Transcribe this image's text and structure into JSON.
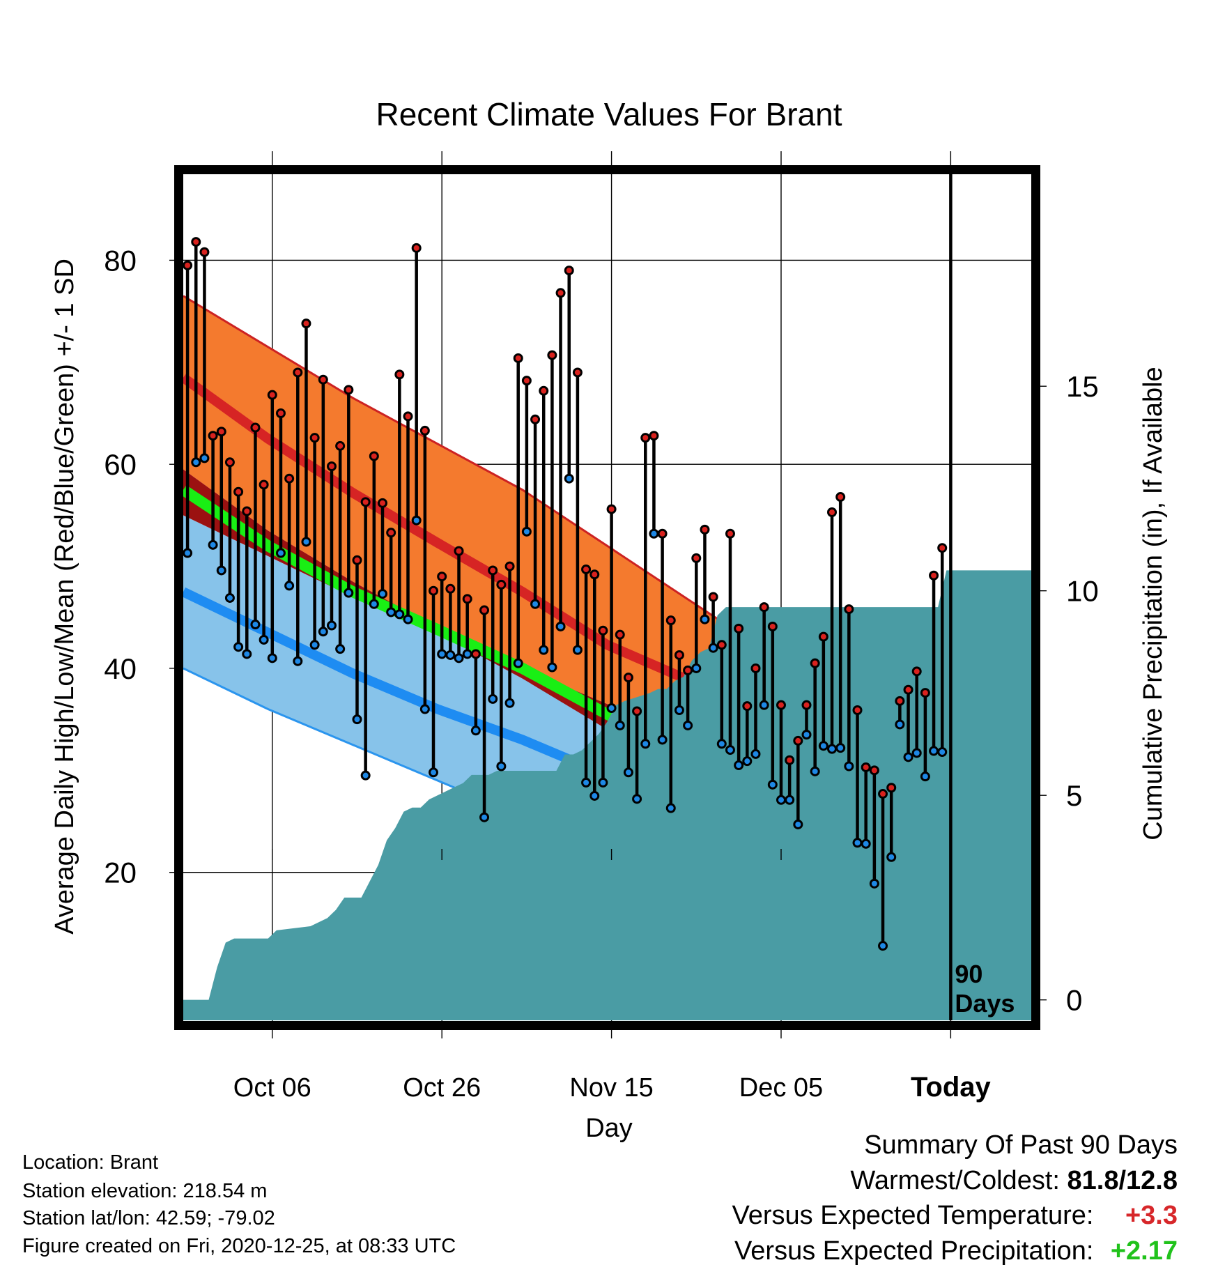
{
  "chart_data": {
    "type": "line",
    "title": "Recent Climate Values For Brant",
    "xlabel": "Day",
    "ylabel": "Average Daily High/Low/Mean (Red/Blue/Green) +/- 1 SD",
    "y2label": "Cumulative Precipitation (in), If Available",
    "xlim_days": [
      0,
      100
    ],
    "ylim": [
      5.5,
      88.5
    ],
    "y2lim": [
      -0.5,
      20.2
    ],
    "x_ticks": [
      {
        "day": 10.5,
        "label": "Oct 06"
      },
      {
        "day": 30.5,
        "label": "Oct 26"
      },
      {
        "day": 50.5,
        "label": "Nov 15"
      },
      {
        "day": 70.5,
        "label": "Dec 05"
      },
      {
        "day": 90.5,
        "label": "Today"
      }
    ],
    "y_ticks": [
      20,
      40,
      60,
      80
    ],
    "y_minor_ticks": [
      10,
      30,
      50,
      70
    ],
    "y2_ticks": [
      0,
      5,
      10,
      15
    ],
    "today_marker": {
      "day": 90.5,
      "label_line1": "90",
      "label_line2": "Days"
    },
    "normals": {
      "days": [
        0,
        10,
        20,
        30,
        40,
        50,
        60,
        70,
        80,
        90,
        100
      ],
      "high_mean": [
        68.5,
        62.5,
        57.2,
        52.3,
        47.5,
        42.3,
        38.7,
        35.5,
        32.6,
        30.5,
        28.3
      ],
      "high_upper": [
        76.5,
        71.5,
        66.5,
        62.0,
        57.5,
        52.0,
        46.5,
        41.0,
        38.0,
        36.0,
        35.0
      ],
      "high_lower": [
        59.5,
        53.5,
        48.5,
        44.0,
        39.0,
        34.0,
        30.0,
        27.0,
        24.5,
        22.0,
        20.5
      ],
      "mean_mean": [
        57.5,
        52.0,
        47.5,
        43.8,
        40.0,
        35.5,
        31.5,
        28.0,
        24.8,
        22.0,
        19.8
      ],
      "low_mean": [
        47.5,
        43.5,
        39.5,
        36.0,
        33.0,
        29.5,
        25.5,
        22.0,
        18.0,
        15.5,
        13.5
      ],
      "low_upper": [
        55.0,
        51.0,
        47.0,
        43.5,
        40.0,
        36.5,
        33.5,
        31.0,
        28.5,
        26.0,
        24.5
      ],
      "low_lower": [
        40.0,
        36.0,
        32.5,
        29.0,
        25.5,
        22.0,
        17.0,
        12.5,
        8.5,
        6.0,
        5.0
      ]
    },
    "series": [
      {
        "name": "High",
        "x": [
          0,
          1,
          2,
          3,
          4,
          5,
          6,
          7,
          8,
          9,
          10,
          11,
          12,
          13,
          14,
          15,
          16,
          17,
          18,
          19,
          20,
          21,
          22,
          23,
          24,
          25,
          26,
          27,
          28,
          29,
          30,
          31,
          32,
          33,
          34,
          35,
          36,
          37,
          38,
          39,
          40,
          41,
          42,
          43,
          44,
          45,
          46,
          47,
          48,
          49,
          50,
          51,
          52,
          53,
          54,
          55,
          56,
          57,
          58,
          59,
          60,
          61,
          62,
          63,
          64,
          65,
          66,
          67,
          68,
          69,
          70,
          71,
          72,
          73,
          74,
          75,
          76,
          77,
          78,
          79,
          80,
          81,
          82,
          83,
          84,
          85,
          86,
          87,
          88,
          89
        ],
        "values": [
          79.5,
          81.8,
          80.8,
          62.8,
          63.2,
          60.2,
          57.3,
          55.4,
          63.6,
          58.0,
          66.8,
          65.0,
          58.6,
          69.0,
          73.8,
          62.6,
          68.3,
          59.8,
          61.8,
          67.3,
          50.6,
          56.3,
          60.8,
          56.2,
          53.3,
          68.8,
          64.7,
          81.2,
          63.3,
          47.6,
          49.0,
          47.8,
          51.5,
          46.8,
          41.4,
          45.7,
          49.6,
          48.2,
          50.0,
          70.4,
          68.2,
          64.4,
          67.2,
          70.7,
          76.8,
          79.0,
          69.0,
          49.7,
          49.2,
          43.7,
          55.6,
          43.3,
          39.1,
          35.8,
          62.6,
          62.8,
          53.2,
          44.7,
          41.3,
          39.8,
          50.8,
          53.6,
          47.0,
          42.3,
          53.2,
          43.9,
          36.3,
          40.0,
          46.0,
          44.1,
          36.4,
          31.0,
          32.9,
          36.4,
          40.5,
          43.1,
          55.3,
          56.8,
          45.8,
          35.9,
          30.3,
          30.0,
          27.7,
          28.3,
          36.8,
          37.9,
          39.7,
          37.6,
          49.1,
          51.8
        ]
      },
      {
        "name": "Low",
        "x": [
          0,
          1,
          2,
          3,
          4,
          5,
          6,
          7,
          8,
          9,
          10,
          11,
          12,
          13,
          14,
          15,
          16,
          17,
          18,
          19,
          20,
          21,
          22,
          23,
          24,
          25,
          26,
          27,
          28,
          29,
          30,
          31,
          32,
          33,
          34,
          35,
          36,
          37,
          38,
          39,
          40,
          41,
          42,
          43,
          44,
          45,
          46,
          47,
          48,
          49,
          50,
          51,
          52,
          53,
          54,
          55,
          56,
          57,
          58,
          59,
          60,
          61,
          62,
          63,
          64,
          65,
          66,
          67,
          68,
          69,
          70,
          71,
          72,
          73,
          74,
          75,
          76,
          77,
          78,
          79,
          80,
          81,
          82,
          83,
          84,
          85,
          86,
          87,
          88,
          89
        ],
        "values": [
          51.3,
          60.2,
          60.6,
          52.1,
          49.6,
          46.9,
          42.1,
          41.4,
          44.3,
          42.8,
          41.0,
          51.3,
          48.1,
          40.7,
          52.4,
          42.3,
          43.6,
          44.2,
          41.9,
          47.4,
          35.0,
          29.5,
          46.3,
          47.3,
          45.5,
          45.3,
          44.8,
          54.5,
          36.0,
          29.8,
          41.4,
          41.3,
          41.0,
          41.4,
          33.9,
          25.4,
          37.0,
          30.4,
          36.6,
          40.5,
          53.4,
          46.3,
          41.8,
          40.1,
          44.1,
          58.6,
          41.8,
          28.8,
          27.5,
          28.8,
          36.1,
          34.4,
          29.8,
          27.2,
          32.6,
          53.2,
          33.0,
          26.3,
          35.9,
          34.4,
          40.0,
          44.8,
          42.0,
          32.6,
          32.0,
          30.5,
          30.9,
          31.6,
          36.4,
          28.6,
          27.1,
          27.1,
          24.7,
          33.5,
          29.9,
          32.4,
          32.1,
          32.2,
          30.4,
          22.9,
          22.8,
          18.9,
          12.8,
          21.5,
          34.5,
          31.3,
          31.7,
          29.4,
          31.9,
          31.8
        ]
      }
    ],
    "precipitation": {
      "days": [
        0,
        3,
        4,
        5,
        6,
        9,
        10,
        11,
        15,
        16,
        17,
        18,
        19,
        20,
        21,
        22,
        23,
        24,
        25,
        26,
        27,
        28,
        29,
        30,
        31,
        32,
        33,
        34,
        35,
        36,
        37,
        38,
        44,
        45,
        46,
        47,
        48,
        49,
        50,
        51,
        52,
        55,
        56,
        57,
        58,
        59,
        60,
        61,
        62,
        63,
        64,
        65,
        66,
        67,
        68,
        69,
        70,
        75,
        76,
        77,
        78,
        79,
        80,
        81,
        82,
        83,
        84,
        85,
        86,
        87,
        88,
        89,
        90,
        100
      ],
      "values": [
        0,
        0,
        0.8,
        1.4,
        1.5,
        1.5,
        1.5,
        1.7,
        1.8,
        1.9,
        2.0,
        2.2,
        2.5,
        2.5,
        2.5,
        2.9,
        3.3,
        3.9,
        4.2,
        4.6,
        4.7,
        4.7,
        4.9,
        5.0,
        5.1,
        5.2,
        5.3,
        5.5,
        5.5,
        5.5,
        5.6,
        5.6,
        5.6,
        6.0,
        6.0,
        6.1,
        6.3,
        6.5,
        6.8,
        7.2,
        7.3,
        7.5,
        7.6,
        7.6,
        7.8,
        7.9,
        8.3,
        8.5,
        8.6,
        9.4,
        9.6,
        9.6,
        9.6,
        9.6,
        9.6,
        9.6,
        9.6,
        9.6,
        9.6,
        9.6,
        9.6,
        9.6,
        9.6,
        9.6,
        9.6,
        9.6,
        9.6,
        9.6,
        9.6,
        9.6,
        9.6,
        9.6,
        10.5,
        10.5
      ]
    }
  },
  "footer": {
    "location": "Location: Brant",
    "elevation": "Station elevation: 218.54 m",
    "latlon": "Station lat/lon: 42.59; -79.02",
    "created": "Figure created on Fri, 2020-12-25, at 08:33 UTC"
  },
  "summary": {
    "title": "Summary Of Past 90 Days",
    "warmest_coldest_label": "Warmest/Coldest:",
    "warmest_coldest_value": "81.8/12.8",
    "temp_label": "Versus Expected Temperature:",
    "temp_value": "+3.3",
    "precip_label": "Versus Expected Precipitation:",
    "precip_value": "+2.17"
  },
  "colors": {
    "high_band": "#f47a2e",
    "high_band_edge": "#cc2222",
    "high_mean_line": "#d62424",
    "overlap_band": "#9b1111",
    "low_band": "#87c3ea",
    "low_band_edge": "#2b95ee",
    "low_mean_line": "#1e8cf2",
    "mean_line": "#19ef14",
    "precip_fill": "#4a9ca4",
    "high_dot": "#d9221e",
    "low_dot": "#1e88e5"
  }
}
